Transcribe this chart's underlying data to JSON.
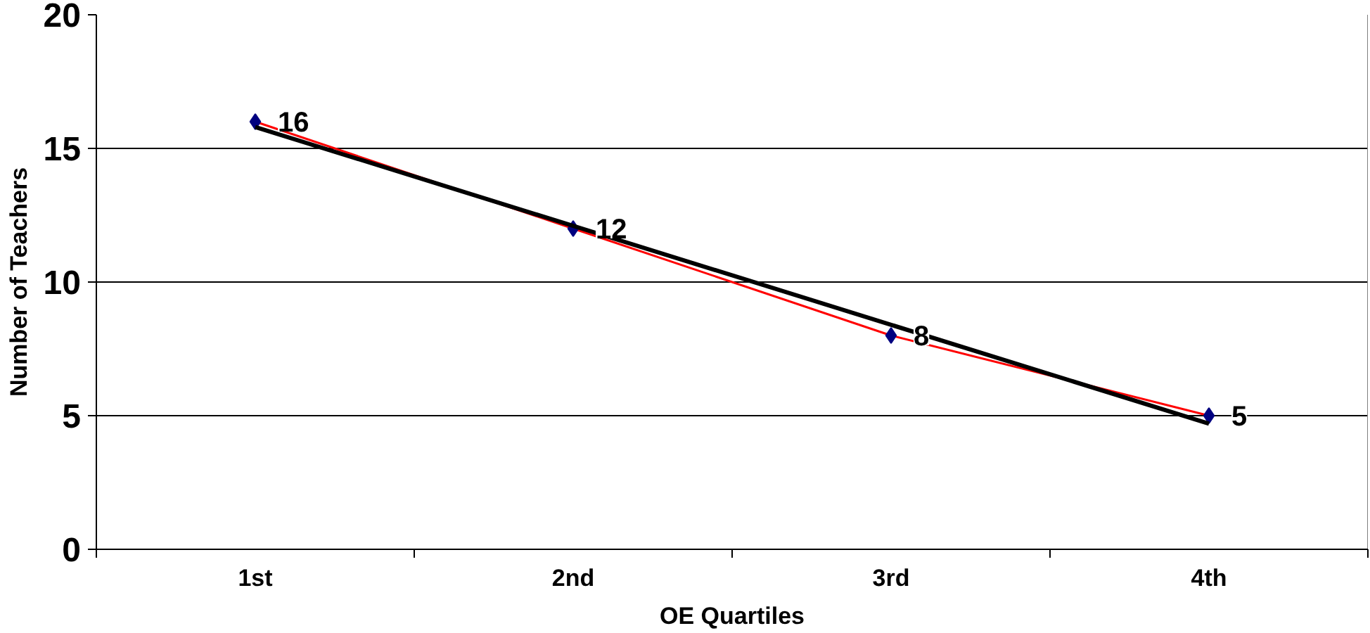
{
  "chart_data": {
    "type": "line",
    "xlabel": "OE Quartiles",
    "ylabel": "Number of Teachers",
    "categories": [
      "1st",
      "2nd",
      "3rd",
      "4th"
    ],
    "series": [
      {
        "color": "#ff0000",
        "colors": [
          "#000080",
          "#000080",
          "#000080",
          "#000080"
        ],
        "marker": "diamond",
        "values": [
          16,
          12,
          8,
          5
        ],
        "data_labels": true
      },
      {
        "color": "#000000",
        "x": [
          "1st",
          "4th"
        ],
        "values": [
          15.8,
          4.7
        ],
        "marker": "none"
      }
    ],
    "ylim": [
      0,
      20
    ],
    "yticks": [
      0,
      5,
      10,
      15,
      20
    ],
    "grid": "y"
  }
}
